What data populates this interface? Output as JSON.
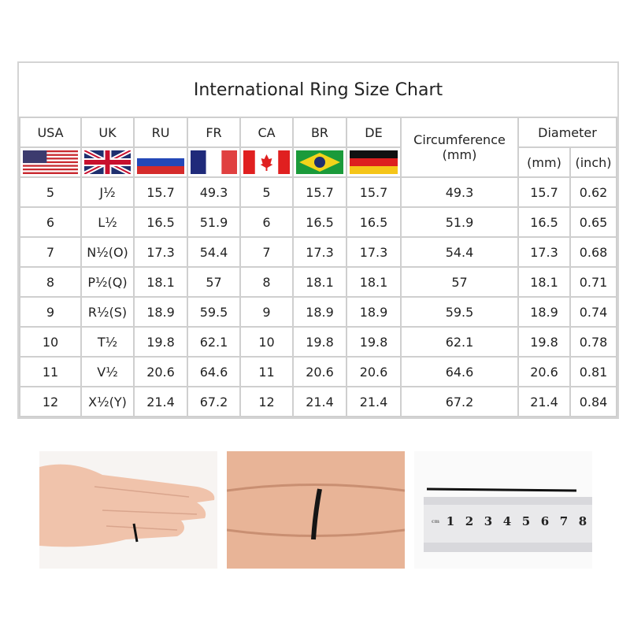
{
  "title": "International Ring Size Chart",
  "columns": [
    "USA",
    "UK",
    "RU",
    "FR",
    "CA",
    "BR",
    "DE"
  ],
  "flags": [
    "us-flag",
    "uk-flag",
    "russia-flag",
    "france-flag",
    "canada-flag",
    "brazil-flag",
    "germany-flag"
  ],
  "circumference_label": "Circumference",
  "circumference_unit": "(mm)",
  "diameter_label": "Diameter",
  "diameter_units": [
    "(mm)",
    "(inch)"
  ],
  "rows": [
    [
      "5",
      "J½",
      "15.7",
      "49.3",
      "5",
      "15.7",
      "15.7",
      "49.3",
      "15.7",
      "0.62"
    ],
    [
      "6",
      "L½",
      "16.5",
      "51.9",
      "6",
      "16.5",
      "16.5",
      "51.9",
      "16.5",
      "0.65"
    ],
    [
      "7",
      "N½(O)",
      "17.3",
      "54.4",
      "7",
      "17.3",
      "17.3",
      "54.4",
      "17.3",
      "0.68"
    ],
    [
      "8",
      "P½(Q)",
      "18.1",
      "57",
      "8",
      "18.1",
      "18.1",
      "57",
      "18.1",
      "0.71"
    ],
    [
      "9",
      "R½(S)",
      "18.9",
      "59.5",
      "9",
      "18.9",
      "18.9",
      "59.5",
      "18.9",
      "0.74"
    ],
    [
      "10",
      "T½",
      "19.8",
      "62.1",
      "10",
      "19.8",
      "19.8",
      "62.1",
      "19.8",
      "0.78"
    ],
    [
      "11",
      "V½",
      "20.6",
      "64.6",
      "11",
      "20.6",
      "20.6",
      "64.6",
      "20.6",
      "0.81"
    ],
    [
      "12",
      "X½(Y)",
      "21.4",
      "67.2",
      "12",
      "21.4",
      "21.4",
      "67.2",
      "21.4",
      "0.84"
    ]
  ],
  "ruler": {
    "unit": "cm",
    "numbers": [
      "1",
      "2",
      "3",
      "4",
      "5",
      "6",
      "7",
      "8"
    ]
  }
}
